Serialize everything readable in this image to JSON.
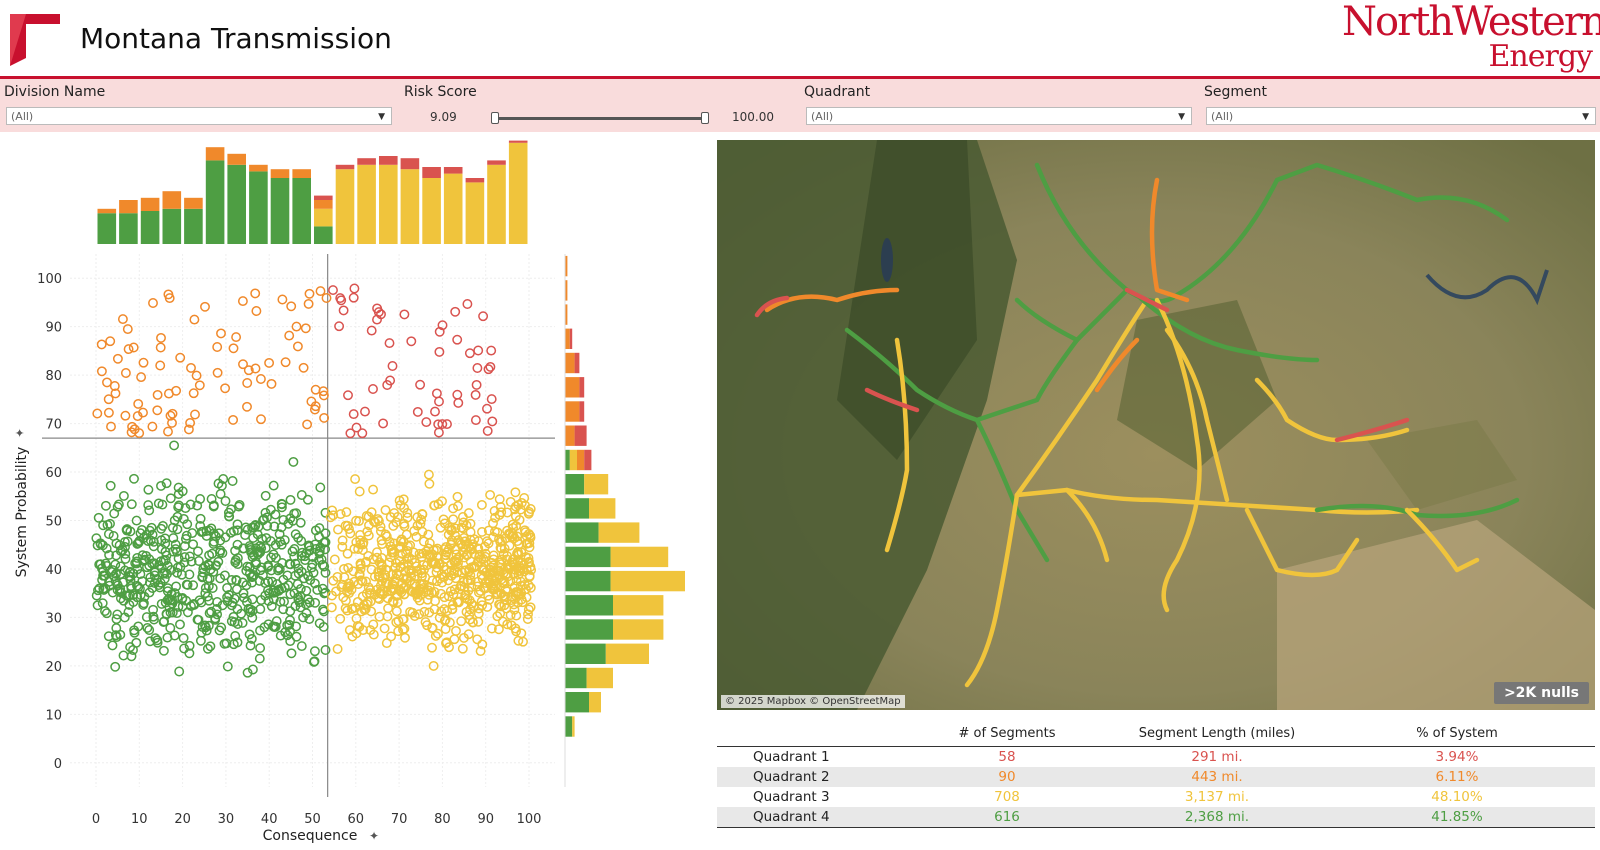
{
  "header": {
    "title": "Montana Transmission",
    "brand_line1": "NorthWestern",
    "brand_line2": "Energy",
    "brand_mark": "®"
  },
  "colors": {
    "q1": "#d9534f",
    "q2": "#f0892b",
    "q3": "#f0c43c",
    "q4": "#4e9e43",
    "accent": "#c8102e",
    "filter_bg": "#f9dcdc"
  },
  "filters": {
    "division": {
      "label": "Division Name",
      "value": "(All)"
    },
    "risk": {
      "label": "Risk Score",
      "min": "9.09",
      "max": "100.00",
      "low": 0.0,
      "high": 1.0
    },
    "quadrant": {
      "label": "Quadrant",
      "value": "(All)"
    },
    "segment": {
      "label": "Segment",
      "value": "(All)"
    }
  },
  "map": {
    "credit": "© 2025 Mapbox © OpenStreetMap",
    "nulls": ">2K nulls"
  },
  "table": {
    "headers": [
      "# of Segments",
      "Segment Length (miles)",
      "% of System"
    ],
    "rows": [
      {
        "name": "Quadrant 1",
        "segments": "58",
        "length": "291 mi.",
        "pct": "3.94%",
        "color": "#d9534f"
      },
      {
        "name": "Quadrant 2",
        "segments": "90",
        "length": "443 mi.",
        "pct": "6.11%",
        "color": "#f0892b"
      },
      {
        "name": "Quadrant 3",
        "segments": "708",
        "length": "3,137 mi.",
        "pct": "48.10%",
        "color": "#f0c43c"
      },
      {
        "name": "Quadrant 4",
        "segments": "616",
        "length": "2,368 mi.",
        "pct": "41.85%",
        "color": "#4e9e43"
      }
    ]
  },
  "chart_data": {
    "type": "scatter",
    "xlabel": "Consequence",
    "ylabel": "System Probability",
    "xlim": [
      -6,
      106
    ],
    "ylim": [
      -5,
      105
    ],
    "xticks": [
      0,
      10,
      20,
      30,
      40,
      50,
      60,
      70,
      80,
      90,
      100
    ],
    "yticks": [
      0,
      10,
      20,
      30,
      40,
      50,
      60,
      70,
      80,
      90,
      100
    ],
    "x_divider": 53.5,
    "y_divider": 67,
    "top_histogram": {
      "bins_x": [
        2.5,
        7.5,
        12.5,
        17.5,
        22.5,
        27.5,
        32.5,
        37.5,
        42.5,
        47.5,
        52.5,
        57.5,
        62.5,
        67.5,
        72.5,
        77.5,
        82.5,
        87.5,
        92.5,
        97.5
      ],
      "green": [
        14,
        14,
        15,
        16,
        16,
        38,
        36,
        33,
        30,
        30,
        8,
        0,
        0,
        0,
        0,
        0,
        0,
        0,
        0,
        0
      ],
      "yellow": [
        0,
        0,
        0,
        0,
        0,
        0,
        0,
        0,
        0,
        0,
        8,
        34,
        36,
        36,
        34,
        30,
        32,
        28,
        36,
        46
      ],
      "orange": [
        2,
        6,
        6,
        8,
        5,
        6,
        5,
        3,
        4,
        4,
        4,
        0,
        0,
        0,
        0,
        0,
        0,
        0,
        0,
        0
      ],
      "red": [
        0,
        0,
        0,
        0,
        0,
        0,
        0,
        0,
        0,
        0,
        2,
        2,
        3,
        4,
        5,
        5,
        3,
        2,
        2,
        1
      ]
    },
    "right_histogram": {
      "bins_y": [
        102.5,
        97.5,
        92.5,
        87.5,
        82.5,
        77.5,
        72.5,
        67.5,
        62.5,
        57.5,
        52.5,
        47.5,
        42.5,
        37.5,
        32.5,
        27.5,
        22.5,
        17.5,
        12.5,
        7.5,
        2.5,
        -2.5
      ],
      "green": [
        0,
        0,
        0,
        0,
        0,
        0,
        0,
        0,
        2,
        8,
        10,
        14,
        19,
        19,
        20,
        20,
        17,
        9,
        10,
        3,
        0,
        0
      ],
      "yellow": [
        0,
        0,
        0,
        0,
        0,
        0,
        0,
        0,
        3,
        10,
        11,
        17,
        24,
        31,
        21,
        21,
        18,
        11,
        5,
        1,
        0,
        0
      ],
      "orange": [
        1,
        1,
        1,
        2,
        4,
        6,
        6,
        4,
        3,
        0,
        0,
        0,
        0,
        0,
        0,
        0,
        0,
        0,
        0,
        0,
        0,
        0
      ],
      "red": [
        0,
        0,
        0,
        1,
        2,
        2,
        2,
        5,
        3,
        0,
        0,
        0,
        0,
        0,
        0,
        0,
        0,
        0,
        0,
        0,
        0,
        0
      ]
    }
  }
}
